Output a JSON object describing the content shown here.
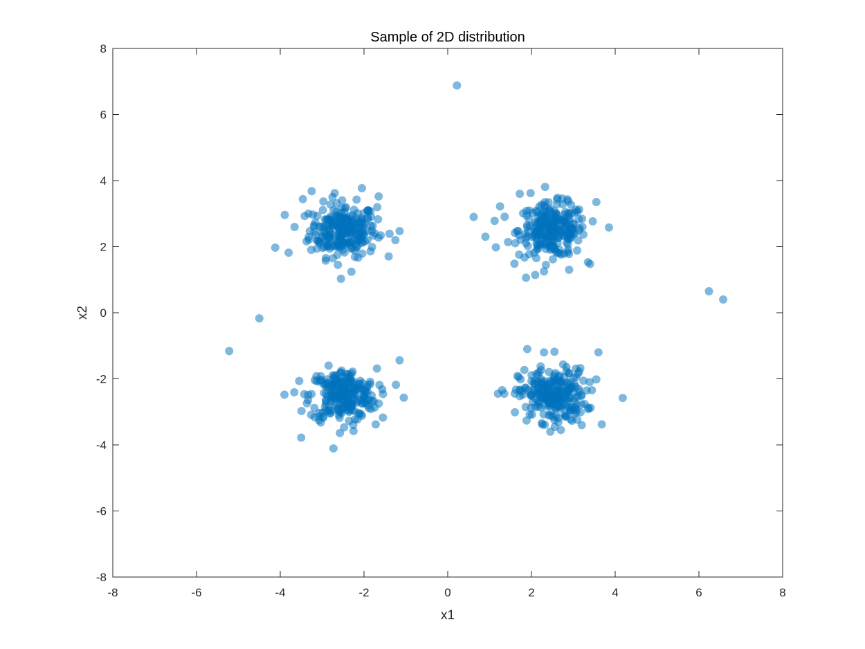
{
  "chart_data": {
    "type": "scatter",
    "title": "Sample of 2D distribution",
    "xlabel": "x1",
    "ylabel": "x2",
    "xlim": [
      -8,
      8
    ],
    "ylim": [
      -8,
      8
    ],
    "xticks": [
      "-8",
      "-6",
      "-4",
      "-2",
      "0",
      "2",
      "4",
      "6",
      "8"
    ],
    "yticks": [
      "-8",
      "-6",
      "-4",
      "-2",
      "0",
      "2",
      "4",
      "6",
      "8"
    ],
    "grid": false,
    "legend": "none",
    "marker_color": "#0072BD",
    "marker_alpha": 0.5,
    "clusters": [
      {
        "center": [
          -2.5,
          2.5
        ],
        "std": 0.4,
        "count": 250
      },
      {
        "center": [
          2.5,
          2.5
        ],
        "std": 0.4,
        "count": 250
      },
      {
        "center": [
          -2.5,
          -2.5
        ],
        "std": 0.4,
        "count": 250
      },
      {
        "center": [
          2.5,
          -2.5
        ],
        "std": 0.4,
        "count": 250
      }
    ],
    "points": [
      [
        0.22,
        6.88
      ],
      [
        6.24,
        0.65
      ],
      [
        6.58,
        0.4
      ],
      [
        -4.5,
        -0.17
      ],
      [
        -5.22,
        -1.16
      ],
      [
        -4.12,
        1.97
      ],
      [
        -3.8,
        1.82
      ],
      [
        -3.46,
        3.44
      ],
      [
        -3.25,
        3.68
      ],
      [
        -2.7,
        3.62
      ],
      [
        -2.05,
        3.77
      ],
      [
        -1.65,
        3.52
      ],
      [
        -1.15,
        2.47
      ],
      [
        -1.25,
        2.2
      ],
      [
        -2.55,
        1.03
      ],
      [
        -2.3,
        1.24
      ],
      [
        -3.5,
        -3.78
      ],
      [
        -3.9,
        -2.48
      ],
      [
        -1.15,
        -1.44
      ],
      [
        -1.05,
        -2.57
      ],
      [
        -1.72,
        -3.38
      ],
      [
        -2.25,
        -3.58
      ],
      [
        0.62,
        2.9
      ],
      [
        0.9,
        2.3
      ],
      [
        1.12,
        2.78
      ],
      [
        1.15,
        1.98
      ],
      [
        1.25,
        3.22
      ],
      [
        1.72,
        3.6
      ],
      [
        1.98,
        3.62
      ],
      [
        1.87,
        1.06
      ],
      [
        2.3,
        1.25
      ],
      [
        2.9,
        1.3
      ],
      [
        3.35,
        1.53
      ],
      [
        3.55,
        3.35
      ],
      [
        3.85,
        2.58
      ],
      [
        1.9,
        -1.1
      ],
      [
        2.3,
        -1.2
      ],
      [
        2.55,
        -1.18
      ],
      [
        3.6,
        -1.2
      ],
      [
        4.18,
        -2.58
      ],
      [
        3.68,
        -3.38
      ],
      [
        2.45,
        -3.6
      ],
      [
        1.2,
        -2.45
      ],
      [
        1.35,
        -2.45
      ],
      [
        3.2,
        -3.4
      ]
    ]
  }
}
